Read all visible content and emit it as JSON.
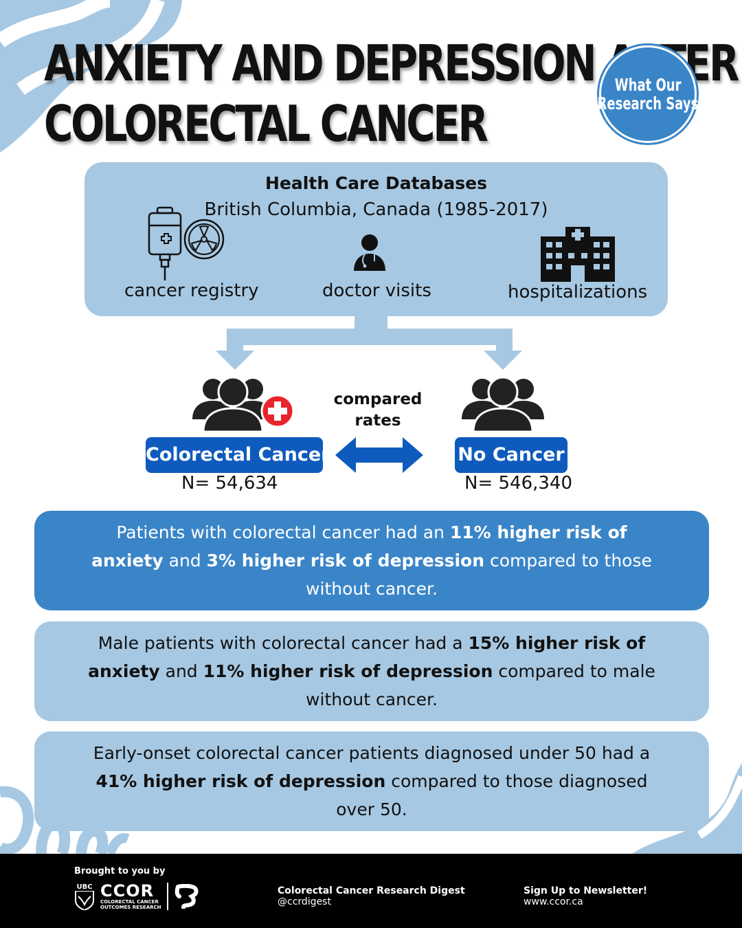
{
  "title": {
    "line1": "ANXIETY AND DEPRESSION AFTER",
    "line2": "COLORECTAL CANCER"
  },
  "badge": {
    "line1": "What Our",
    "line2": "Research Says"
  },
  "databases": {
    "heading": "Health Care Databases",
    "subtitle": "British Columbia, Canada (1985-2017)",
    "sources": [
      {
        "label": "cancer registry",
        "icon": "iv-bag-radiation-icon"
      },
      {
        "label": "doctor visits",
        "icon": "doctor-icon"
      },
      {
        "label": "hospitalizations",
        "icon": "hospital-icon"
      }
    ]
  },
  "comparison": {
    "label_line1": "compared",
    "label_line2": "rates",
    "groups": [
      {
        "name": "Colorectal Cancer",
        "count": "N= 54,634"
      },
      {
        "name": "No Cancer",
        "count": "N= 546,340"
      }
    ]
  },
  "findings": [
    {
      "t1": "Patients with colorectal cancer had an ",
      "b1": "11% higher risk of anxiety",
      "t2": " and ",
      "b2": "3% higher risk of depression",
      "t3": " compared to those without cancer."
    },
    {
      "t1": "Male patients with colorectal cancer had a ",
      "b1": "15% higher risk of anxiety",
      "t2": " and ",
      "b2": "11% higher risk of depression",
      "t3": " compared to male without cancer."
    },
    {
      "t1": "Early-onset colorectal cancer patients diagnosed under 50 had a ",
      "b1": "41% higher risk of depression",
      "t2": " compared to those diagnosed over 50.",
      "b2": "",
      "t3": ""
    }
  ],
  "footer": {
    "brought_by": "Brought to you by",
    "ubc": "UBC",
    "ccor_name": "CCOR",
    "ccor_sub1": "COLORECTAL CANCER",
    "ccor_sub2": "OUTCOMES RESEARCH",
    "digest_title": "Colorectal Cancer Research Digest",
    "digest_handle": "@ccrdigest",
    "newsletter_title": "Sign Up to Newsletter!",
    "newsletter_url": "www.ccor.ca"
  },
  "colors": {
    "light_blue": "#a7c8e2",
    "mid_blue": "#3a85c8",
    "dark_blue": "#0e5bbd",
    "red": "#e8242c"
  }
}
